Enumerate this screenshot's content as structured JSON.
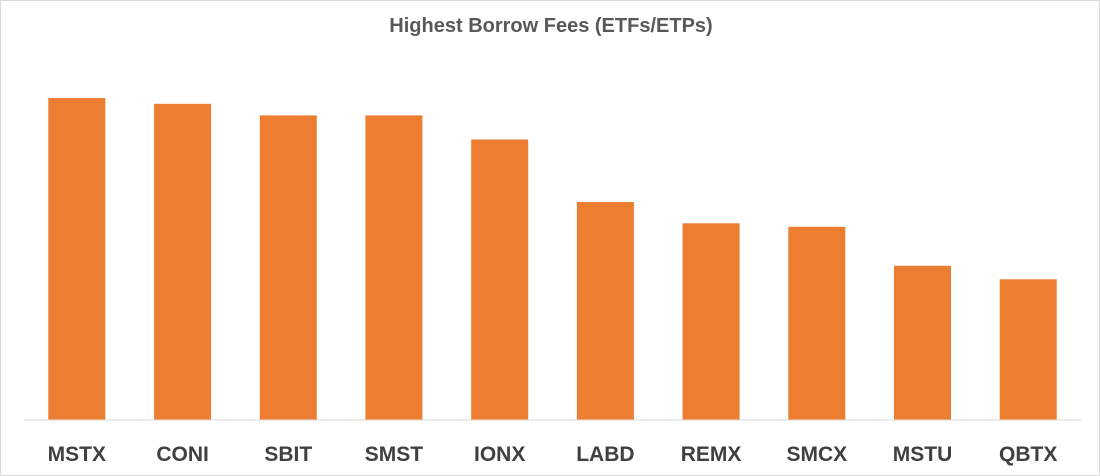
{
  "chart_data": {
    "type": "bar",
    "title": "Highest Borrow Fees (ETFs/ETPs)",
    "xlabel": "",
    "ylabel": "",
    "categories": [
      "MSTX",
      "CONI",
      "SBIT",
      "SMST",
      "IONX",
      "LABD",
      "REMX",
      "SMCX",
      "MSTU",
      "QBTX"
    ],
    "values": [
      100,
      98.2,
      94.6,
      94.6,
      87.1,
      67.7,
      61.1,
      60.0,
      47.9,
      43.7
    ],
    "ylim": [
      0,
      100
    ],
    "bar_color": "#ed7d31",
    "axis_visible": false,
    "grid": false,
    "legend": "none"
  }
}
